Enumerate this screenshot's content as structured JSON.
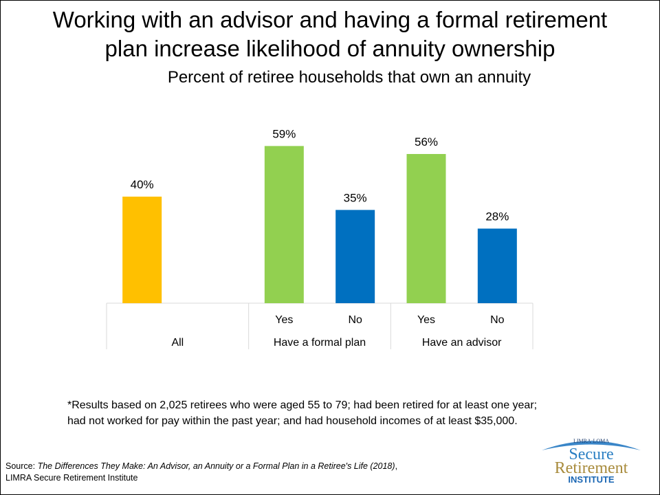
{
  "title_line1": "Working with an advisor and having a formal retirement",
  "title_line2": "plan increase likelihood of annuity ownership",
  "footnote_line1": "*Results based on 2,025 retirees who were aged 55 to 79; had been retired for at least one year;",
  "footnote_line2": "had not worked for pay within the past year; and had household incomes of at least $35,000.",
  "source": {
    "prefix": "Source: ",
    "title": "The Differences They Make: An Advisor, an Annuity or a Formal Plan in a Retiree's Life (2018)",
    "suffix": ", LIMRA Secure Retirement Institute"
  },
  "logo": {
    "top": "LIMRA·LOMA",
    "line1": "Secure",
    "line2": "Retirement",
    "line3": "INSTITUTE"
  },
  "chart_data": {
    "type": "bar",
    "title": "Percent of retiree households that own an annuity",
    "groups": [
      {
        "label": "All",
        "bars": [
          {
            "label": "",
            "value": 40,
            "color": "#FFC000"
          }
        ]
      },
      {
        "label": "Have a formal plan",
        "bars": [
          {
            "label": "Yes",
            "value": 59,
            "color": "#92D050"
          },
          {
            "label": "No",
            "value": 35,
            "color": "#0070C0"
          }
        ]
      },
      {
        "label": "Have an advisor",
        "bars": [
          {
            "label": "Yes",
            "value": 56,
            "color": "#92D050"
          },
          {
            "label": "No",
            "value": 28,
            "color": "#0070C0"
          }
        ]
      }
    ],
    "data_labels": [
      "40%",
      "59%",
      "35%",
      "56%",
      "28%"
    ],
    "ylim": [
      0,
      60
    ],
    "grid": false,
    "legend": "none"
  }
}
